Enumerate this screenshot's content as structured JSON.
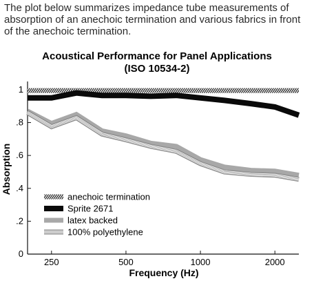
{
  "intro_text": "The plot below summarizes impedance tube measurements of absorption of an anechoic termination and various fabrics in front of the anechoic termination.",
  "chart_data": {
    "type": "line",
    "title": "Acoustical Performance for Panel Applications",
    "subtitle": "(ISO 10534-2)",
    "xlabel": "Frequency (Hz)",
    "ylabel": "Absorption",
    "x_scale": "log",
    "xlim": [
      200,
      2500
    ],
    "ylim": [
      0,
      1.05
    ],
    "x_ticks": [
      {
        "value": 250,
        "label": "250"
      },
      {
        "value": 500,
        "label": "500"
      },
      {
        "value": 1000,
        "label": "1000"
      },
      {
        "value": 2000,
        "label": "2000"
      }
    ],
    "y_ticks": [
      {
        "value": 0,
        "label": "0"
      },
      {
        "value": 0.2,
        "label": ".2"
      },
      {
        "value": 0.4,
        "label": ".4"
      },
      {
        "value": 0.6,
        "label": ".6"
      },
      {
        "value": 0.8,
        "label": ".8"
      },
      {
        "value": 1.0,
        "label": "1"
      }
    ],
    "grid": false,
    "legend_position": "bottom-left",
    "x": [
      200,
      250,
      315,
      400,
      500,
      630,
      800,
      1000,
      1250,
      1600,
      2000,
      2500
    ],
    "series": [
      {
        "name": "anechoic termination",
        "style": "hatched",
        "values": [
          0.995,
          0.995,
          0.995,
          0.995,
          0.995,
          0.995,
          0.995,
          0.995,
          0.995,
          0.995,
          0.995,
          0.995
        ]
      },
      {
        "name": "Sprite 2671",
        "style": "thick-black",
        "values": [
          0.95,
          0.95,
          0.98,
          0.965,
          0.965,
          0.96,
          0.965,
          0.95,
          0.935,
          0.915,
          0.895,
          0.845
        ]
      },
      {
        "name": "latex backed",
        "style": "thick-gray",
        "values": [
          0.87,
          0.795,
          0.85,
          0.75,
          0.72,
          0.675,
          0.655,
          0.575,
          0.53,
          0.51,
          0.505,
          0.48
        ]
      },
      {
        "name": "100% polyethylene",
        "style": "triple-line",
        "values": [
          0.86,
          0.775,
          0.83,
          0.73,
          0.695,
          0.655,
          0.625,
          0.55,
          0.5,
          0.485,
          0.48,
          0.455
        ]
      }
    ]
  }
}
